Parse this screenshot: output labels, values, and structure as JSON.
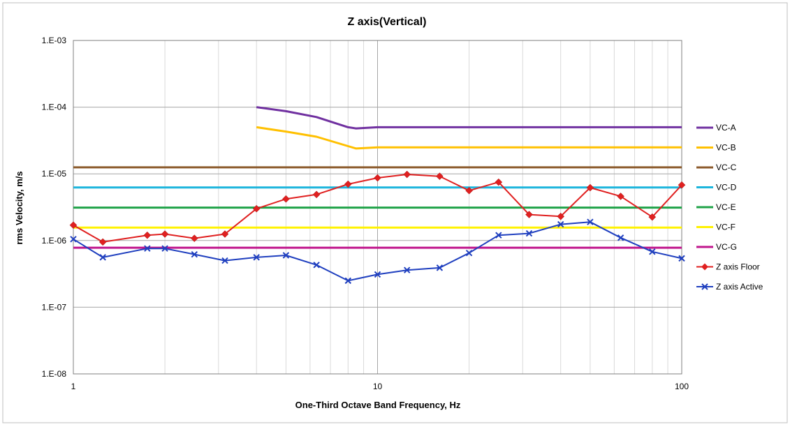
{
  "chart_data": {
    "type": "line",
    "title": "Z axis(Vertical)",
    "xlabel": "One-Third Octave Band Frequency, Hz",
    "ylabel": "rms Velocity, m/s",
    "x_scale": "log",
    "y_scale": "log",
    "xlim": [
      1,
      100
    ],
    "ylim": [
      1e-08,
      0.001
    ],
    "x_ticks": [
      {
        "value": 1,
        "label": "1"
      },
      {
        "value": 10,
        "label": "10"
      },
      {
        "value": 100,
        "label": "100"
      }
    ],
    "y_ticks": [
      {
        "value": 1e-08,
        "label": "1.E-08"
      },
      {
        "value": 1e-07,
        "label": "1.E-07"
      },
      {
        "value": 1e-06,
        "label": "1.E-06"
      },
      {
        "value": 1e-05,
        "label": "1.E-05"
      },
      {
        "value": 0.0001,
        "label": "1.E-04"
      },
      {
        "value": 0.001,
        "label": "1.E-03"
      }
    ],
    "grid": true,
    "legend_position": "right",
    "series": [
      {
        "name": "VC-A",
        "color": "#7030A0",
        "marker": "none",
        "x": [
          4,
          5,
          6.3,
          8,
          8.5,
          10,
          100
        ],
        "y": [
          0.0001,
          8.7e-05,
          7.1e-05,
          5e-05,
          4.8e-05,
          5e-05,
          5e-05
        ]
      },
      {
        "name": "VC-B",
        "color": "#FFC000",
        "marker": "none",
        "x": [
          4,
          5,
          6.3,
          8,
          8.5,
          10,
          100
        ],
        "y": [
          5e-05,
          4.3e-05,
          3.6e-05,
          2.6e-05,
          2.4e-05,
          2.5e-05,
          2.5e-05
        ]
      },
      {
        "name": "VC-C",
        "color": "#8B5A2B",
        "marker": "none",
        "x": [
          1,
          100
        ],
        "y": [
          1.25e-05,
          1.25e-05
        ]
      },
      {
        "name": "VC-D",
        "color": "#1CB5DC",
        "marker": "none",
        "x": [
          1,
          100
        ],
        "y": [
          6.25e-06,
          6.25e-06
        ]
      },
      {
        "name": "VC-E",
        "color": "#1FA348",
        "marker": "none",
        "x": [
          1,
          100
        ],
        "y": [
          3.12e-06,
          3.12e-06
        ]
      },
      {
        "name": "VC-F",
        "color": "#FFF200",
        "marker": "none",
        "x": [
          1,
          100
        ],
        "y": [
          1.56e-06,
          1.56e-06
        ]
      },
      {
        "name": "VC-G",
        "color": "#C0168C",
        "marker": "none",
        "x": [
          1,
          100
        ],
        "y": [
          7.8e-07,
          7.8e-07
        ]
      },
      {
        "name": "Z axis Floor",
        "color": "#E02020",
        "marker": "diamond",
        "x": [
          1,
          1.25,
          1.75,
          2,
          2.5,
          3.15,
          4,
          5,
          6.3,
          8,
          10,
          12.5,
          16,
          20,
          25,
          31.5,
          40,
          50,
          63,
          80,
          100
        ],
        "y": [
          1.7e-06,
          9.5e-07,
          1.2e-06,
          1.25e-06,
          1.08e-06,
          1.25e-06,
          3e-06,
          4.2e-06,
          4.9e-06,
          7e-06,
          8.7e-06,
          9.8e-06,
          9.2e-06,
          5.6e-06,
          7.5e-06,
          2.45e-06,
          2.3e-06,
          6.2e-06,
          4.6e-06,
          2.25e-06,
          6.8e-06
        ]
      },
      {
        "name": "Z axis Active",
        "color": "#1F3FBF",
        "marker": "x",
        "x": [
          1,
          1.25,
          1.75,
          2,
          2.5,
          3.15,
          4,
          5,
          6.3,
          8,
          10,
          12.5,
          16,
          20,
          25,
          31.5,
          40,
          50,
          63,
          80,
          100
        ],
        "y": [
          1.05e-06,
          5.6e-07,
          7.6e-07,
          7.6e-07,
          6.2e-07,
          5e-07,
          5.6e-07,
          6e-07,
          4.3e-07,
          2.5e-07,
          3.1e-07,
          3.6e-07,
          3.9e-07,
          6.5e-07,
          1.2e-06,
          1.28e-06,
          1.75e-06,
          1.9e-06,
          1.1e-06,
          6.8e-07,
          5.4e-07
        ]
      }
    ]
  }
}
